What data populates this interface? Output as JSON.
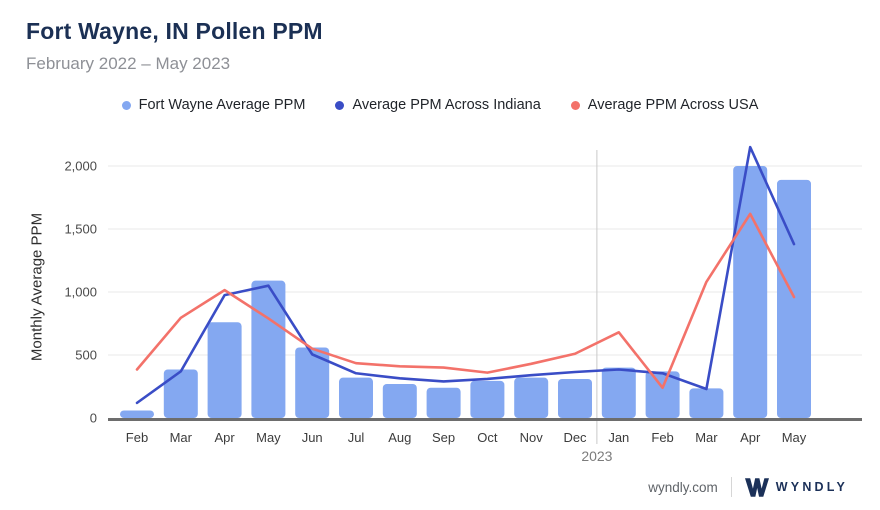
{
  "header": {
    "title": "Fort Wayne, IN Pollen PPM",
    "subtitle": "February 2022 – May 2023"
  },
  "legend": {
    "items": [
      {
        "label": "Fort Wayne Average PPM",
        "color": "#84a8f1"
      },
      {
        "label": "Average PPM Across Indiana",
        "color": "#3a4dc6"
      },
      {
        "label": "Average PPM Across USA",
        "color": "#f3726a"
      }
    ]
  },
  "chart_data": {
    "type": "bar",
    "title": "Fort Wayne, IN Pollen PPM",
    "xlabel": "",
    "ylabel": "Monthly Average PPM",
    "categories": [
      "Feb",
      "Mar",
      "Apr",
      "May",
      "Jun",
      "Jul",
      "Aug",
      "Sep",
      "Oct",
      "Nov",
      "Dec",
      "Jan",
      "Feb",
      "Mar",
      "Apr",
      "May"
    ],
    "x_axis_note": {
      "label": "2023",
      "divider_after_index": 10
    },
    "yticks": [
      {
        "value": 0,
        "label": "0"
      },
      {
        "value": 500,
        "label": "500"
      },
      {
        "value": 1000,
        "label": "1,000"
      },
      {
        "value": 1500,
        "label": "1,500"
      },
      {
        "value": 2000,
        "label": "2,000"
      }
    ],
    "ylim": [
      0,
      2160
    ],
    "grid": true,
    "legend_position": "top",
    "series": [
      {
        "name": "Fort Wayne Average PPM",
        "type": "bar",
        "color": "#84a8f1",
        "values": [
          60,
          385,
          760,
          1090,
          560,
          320,
          270,
          240,
          295,
          320,
          310,
          400,
          370,
          235,
          2000,
          1890
        ]
      },
      {
        "name": "Average PPM Across Indiana",
        "type": "line",
        "color": "#3a4dc6",
        "values": [
          120,
          370,
          975,
          1050,
          505,
          355,
          315,
          290,
          310,
          340,
          365,
          385,
          355,
          230,
          2150,
          1380
        ]
      },
      {
        "name": "Average PPM Across USA",
        "type": "line",
        "color": "#f3726a",
        "values": [
          385,
          795,
          1015,
          790,
          550,
          435,
          410,
          400,
          360,
          430,
          510,
          680,
          240,
          1080,
          1620,
          960
        ]
      }
    ]
  },
  "footer": {
    "site_label": "wyndly.com",
    "brand_label": "WYNDLY",
    "brand_color": "#1b3058"
  }
}
